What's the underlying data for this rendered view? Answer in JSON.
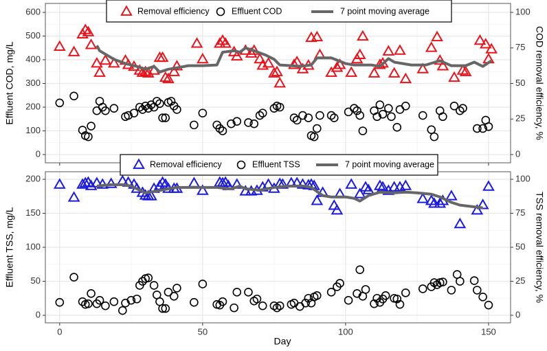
{
  "chart_data": [
    {
      "type": "scatter",
      "ylabel": "Effluent COD, mg/L",
      "y2label": "COD removal efficiency, %",
      "xlim": [
        -5,
        157.7
      ],
      "xticks": [
        0,
        50,
        100,
        150
      ],
      "ylim": [
        -34.8,
        637.7
      ],
      "yticks": [
        0,
        100,
        200,
        300,
        400,
        500,
        600
      ],
      "y2lim": [
        -5.8,
        106.3
      ],
      "y2ticks": [
        0,
        25,
        50,
        75,
        100
      ],
      "grid": true,
      "series": [
        {
          "name": "Removal efficiency",
          "color": "#e8141c",
          "marker": "triangle",
          "axis": "y2",
          "x": [
            0,
            5,
            8,
            9,
            10,
            11,
            13,
            14,
            16,
            19,
            23,
            24,
            26,
            28,
            29,
            30,
            31,
            33,
            35,
            36,
            37,
            38,
            40,
            41,
            48,
            50,
            56,
            57,
            58,
            61,
            62,
            65,
            67,
            68,
            70,
            71,
            73,
            75,
            76,
            77,
            82,
            83,
            85,
            87,
            88,
            90,
            91,
            95,
            97,
            98,
            102,
            104,
            105,
            106,
            110,
            112,
            113,
            115,
            117,
            119,
            121,
            127,
            130,
            132,
            133,
            134,
            138,
            141,
            142,
            147,
            149,
            150,
            151
          ],
          "values": [
            75.8,
            72,
            84.5,
            87.5,
            86,
            77,
            64,
            57.5,
            66,
            64,
            66,
            63,
            61.7,
            59,
            57.5,
            58,
            57,
            59,
            68,
            68,
            54,
            53,
            58,
            62,
            78,
            67,
            78,
            80,
            78,
            72,
            69,
            73,
            71,
            73,
            67,
            62.5,
            64,
            57,
            58,
            50,
            63,
            65,
            60,
            62.5,
            82,
            82.5,
            70,
            57.5,
            61,
            63,
            57.5,
            67,
            70,
            83,
            57,
            63,
            64,
            72.5,
            57,
            73,
            53,
            60,
            75,
            82.5,
            66,
            62,
            54,
            59,
            58,
            80,
            77.5,
            67,
            74
          ]
        },
        {
          "name": "Effluent COD",
          "color": "#000000",
          "marker": "circle",
          "x": [
            0,
            5,
            8,
            9,
            10,
            11,
            13,
            14,
            15,
            16,
            19,
            23,
            24,
            26,
            28,
            29,
            30,
            31,
            32,
            33,
            34,
            35,
            36,
            37,
            38,
            39,
            40,
            41,
            47,
            50,
            55,
            56,
            57,
            60,
            62,
            66,
            68,
            70,
            71,
            75,
            76,
            77,
            82,
            83,
            85,
            87,
            88,
            89,
            90,
            91,
            95,
            96,
            101,
            103,
            104,
            105,
            106,
            110,
            111,
            112,
            113,
            115,
            116,
            118,
            119,
            121,
            127,
            130,
            131,
            133,
            134,
            138,
            140,
            141,
            146,
            148,
            149,
            150
          ],
          "values": [
            218,
            247,
            103,
            80,
            75,
            120,
            185,
            225,
            200,
            185,
            195,
            160,
            165,
            175,
            200,
            190,
            205,
            195,
            210,
            200,
            225,
            215,
            155,
            155,
            220,
            225,
            205,
            190,
            125,
            175,
            125,
            110,
            100,
            130,
            140,
            135,
            130,
            165,
            175,
            195,
            205,
            200,
            155,
            145,
            165,
            155,
            80,
            75,
            110,
            165,
            165,
            155,
            180,
            195,
            185,
            165,
            100,
            185,
            160,
            210,
            170,
            195,
            160,
            115,
            190,
            205,
            165,
            105,
            75,
            185,
            160,
            205,
            185,
            195,
            110,
            110,
            145,
            118
          ]
        },
        {
          "name": "7 point moving average",
          "color": "#666666",
          "marker": "line",
          "axis": "y2",
          "x": [
            13,
            14,
            19,
            23,
            27,
            30,
            33,
            35,
            38,
            41,
            45,
            50,
            55,
            57,
            61,
            63,
            65,
            68,
            72,
            75,
            77,
            81,
            84,
            88,
            90,
            95,
            100,
            103,
            109,
            112,
            115,
            117,
            123,
            128,
            133,
            137,
            142,
            145,
            148,
            151
          ],
          "values": [
            76.7,
            73,
            67,
            64,
            62,
            60,
            62,
            58,
            60,
            61,
            62.5,
            62.5,
            63,
            72,
            73,
            72,
            75,
            73,
            70,
            67,
            63,
            62.5,
            62,
            63,
            68,
            68,
            64,
            63,
            63,
            62,
            67.5,
            65,
            63,
            63,
            66,
            62.5,
            62.5,
            65,
            62,
            66
          ]
        }
      ]
    },
    {
      "type": "scatter",
      "ylabel": "Effluent TSS, mg/L",
      "y2label": "TSS removal efficiency, %",
      "xlabel": "Day",
      "xlim": [
        -5,
        157.7
      ],
      "xticks": [
        0,
        50,
        100,
        150
      ],
      "ylim": [
        -11.1,
        211.1
      ],
      "yticks": [
        0,
        50,
        100,
        150,
        200
      ],
      "y2lim": [
        -5.55,
        105.55
      ],
      "y2ticks": [
        0,
        25,
        50,
        75,
        100
      ],
      "grid": true,
      "series": [
        {
          "name": "Removal efficiency",
          "color": "#1a1ae0",
          "marker": "triangle",
          "axis": "y2",
          "x": [
            0,
            5,
            8,
            9,
            10,
            11,
            13,
            15,
            18,
            22,
            24,
            26,
            27,
            29,
            30,
            31,
            32,
            33,
            35,
            36,
            37,
            38,
            40,
            41,
            47,
            50,
            56,
            57,
            58,
            59,
            62,
            65,
            67,
            69,
            71,
            73,
            75,
            77,
            78,
            81,
            83,
            85,
            87,
            88,
            89,
            90,
            92,
            96,
            97,
            98,
            102,
            105,
            107,
            108,
            112,
            113,
            115,
            117,
            119,
            121,
            127,
            130,
            131,
            133,
            134,
            137,
            140,
            146,
            148,
            150
          ],
          "values": [
            96,
            86.5,
            96,
            97,
            97.5,
            95,
            97,
            96,
            96.5,
            98.5,
            97.5,
            96,
            93,
            90,
            88,
            87.5,
            87.5,
            93,
            95,
            97.5,
            96,
            93,
            93,
            93,
            97,
            91.5,
            97.5,
            97,
            97.5,
            95,
            96,
            91,
            91,
            91.5,
            94,
            96,
            93,
            96.5,
            96,
            97,
            97,
            96,
            95.5,
            96,
            95,
            84,
            90,
            80.5,
            77,
            89,
            96,
            89,
            94,
            92,
            95,
            94,
            91.5,
            94,
            94,
            95,
            85.5,
            84,
            82,
            82,
            84,
            87.5,
            67,
            77,
            81,
            94.5
          ]
        },
        {
          "name": "Effluent TSS",
          "color": "#000000",
          "marker": "circle",
          "x": [
            0,
            5,
            8,
            9,
            10,
            11,
            13,
            14,
            16,
            19,
            22,
            23,
            25,
            27,
            28,
            29,
            30,
            31,
            33,
            34,
            35,
            36,
            37,
            38,
            40,
            41,
            47,
            50,
            55,
            56,
            57,
            61,
            62,
            66,
            68,
            69,
            71,
            75,
            76,
            77,
            81,
            82,
            84,
            86,
            87,
            88,
            89,
            90,
            95,
            97,
            98,
            101,
            104,
            105,
            106,
            107,
            110,
            111,
            112,
            113,
            114,
            117,
            118,
            119,
            121,
            127,
            130,
            131,
            132,
            133,
            134,
            137,
            139,
            140,
            145,
            146,
            148,
            150
          ],
          "values": [
            19,
            56,
            20,
            16,
            17,
            32,
            17,
            22,
            14,
            20,
            7,
            18,
            22,
            24,
            44,
            50,
            54,
            55,
            44,
            30,
            20,
            10,
            10,
            34,
            28,
            40,
            19,
            46,
            16,
            15,
            20,
            11,
            34,
            34,
            21,
            24,
            14,
            14,
            11,
            14,
            16,
            18,
            13,
            18,
            25,
            18,
            27,
            29,
            34,
            42,
            47,
            22,
            32,
            67,
            28,
            38,
            17,
            25,
            19,
            24,
            29,
            25,
            24,
            16,
            33,
            39,
            42,
            48,
            45,
            48,
            49,
            37,
            60,
            50,
            51,
            37,
            27,
            15
          ]
        },
        {
          "name": "7 point moving average",
          "color": "#666666",
          "marker": "line",
          "axis": "y2",
          "x": [
            13,
            18,
            22,
            25,
            28,
            30,
            33,
            38,
            41,
            45,
            50,
            55,
            60,
            63,
            65,
            70,
            75,
            80,
            85,
            88,
            92,
            95,
            100,
            103,
            105,
            108,
            112,
            117,
            121,
            125,
            130,
            133,
            137,
            140,
            144,
            148
          ],
          "values": [
            95,
            96,
            96,
            95,
            92,
            90,
            91,
            93,
            94,
            94,
            94,
            94,
            93,
            95,
            93,
            92,
            94,
            95,
            95,
            94,
            88,
            87,
            87,
            86,
            84,
            88,
            90.5,
            90,
            90.5,
            90,
            89,
            87,
            83,
            81,
            80,
            79
          ]
        }
      ]
    }
  ]
}
